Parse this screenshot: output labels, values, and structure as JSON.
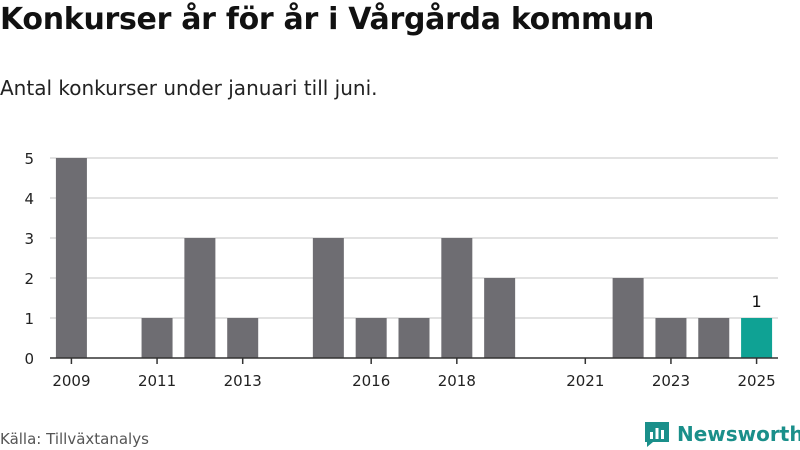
{
  "title": "Konkurser år för år i Vårgårda kommun",
  "subtitle": "Antal konkurser under januari till juni.",
  "source": "Källa: Tillväxtanalys",
  "brand": "Newsworthy",
  "colors": {
    "bar": "#6e6d72",
    "highlight": "#0fa294",
    "grid": "#d9d9d9",
    "axis": "#333333",
    "brand": "#1a8f8a"
  },
  "chart_data": {
    "type": "bar",
    "title": "Konkurser år för år i Vårgårda kommun",
    "subtitle": "Antal konkurser under januari till juni.",
    "categories": [
      "2009",
      "2010",
      "2011",
      "2012",
      "2013",
      "2014",
      "2015",
      "2016",
      "2017",
      "2018",
      "2019",
      "2020",
      "2021",
      "2022",
      "2023",
      "2024",
      "2025"
    ],
    "values": [
      5,
      0,
      1,
      3,
      1,
      0,
      3,
      1,
      1,
      3,
      2,
      0,
      0,
      2,
      1,
      1,
      1
    ],
    "x_tick_labels": [
      "2009",
      "2011",
      "2013",
      "2016",
      "2018",
      "2021",
      "2023",
      "2025"
    ],
    "y_ticks": [
      0,
      1,
      2,
      3,
      4,
      5
    ],
    "ylim": [
      0,
      5
    ],
    "grid": true,
    "highlight_category": "2025",
    "data_labels": [
      {
        "category": "2025",
        "label": "1"
      }
    ],
    "xlabel": "",
    "ylabel": ""
  }
}
